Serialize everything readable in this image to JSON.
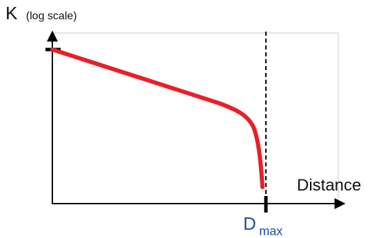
{
  "chart_data": {
    "type": "line",
    "ylabel": "K",
    "ylabel_note": "(log scale)",
    "xlabel": "Distance",
    "yscale": "log",
    "marker": {
      "label_main": "D",
      "label_sub": "max",
      "style": "dashed vertical line"
    },
    "series": [
      {
        "shape": "declining slowly, then dropping steeply just before the marker",
        "color": "#e8202a"
      }
    ],
    "axis_color": "#000000",
    "frame_color": "#c8c8c8",
    "grid": false
  }
}
